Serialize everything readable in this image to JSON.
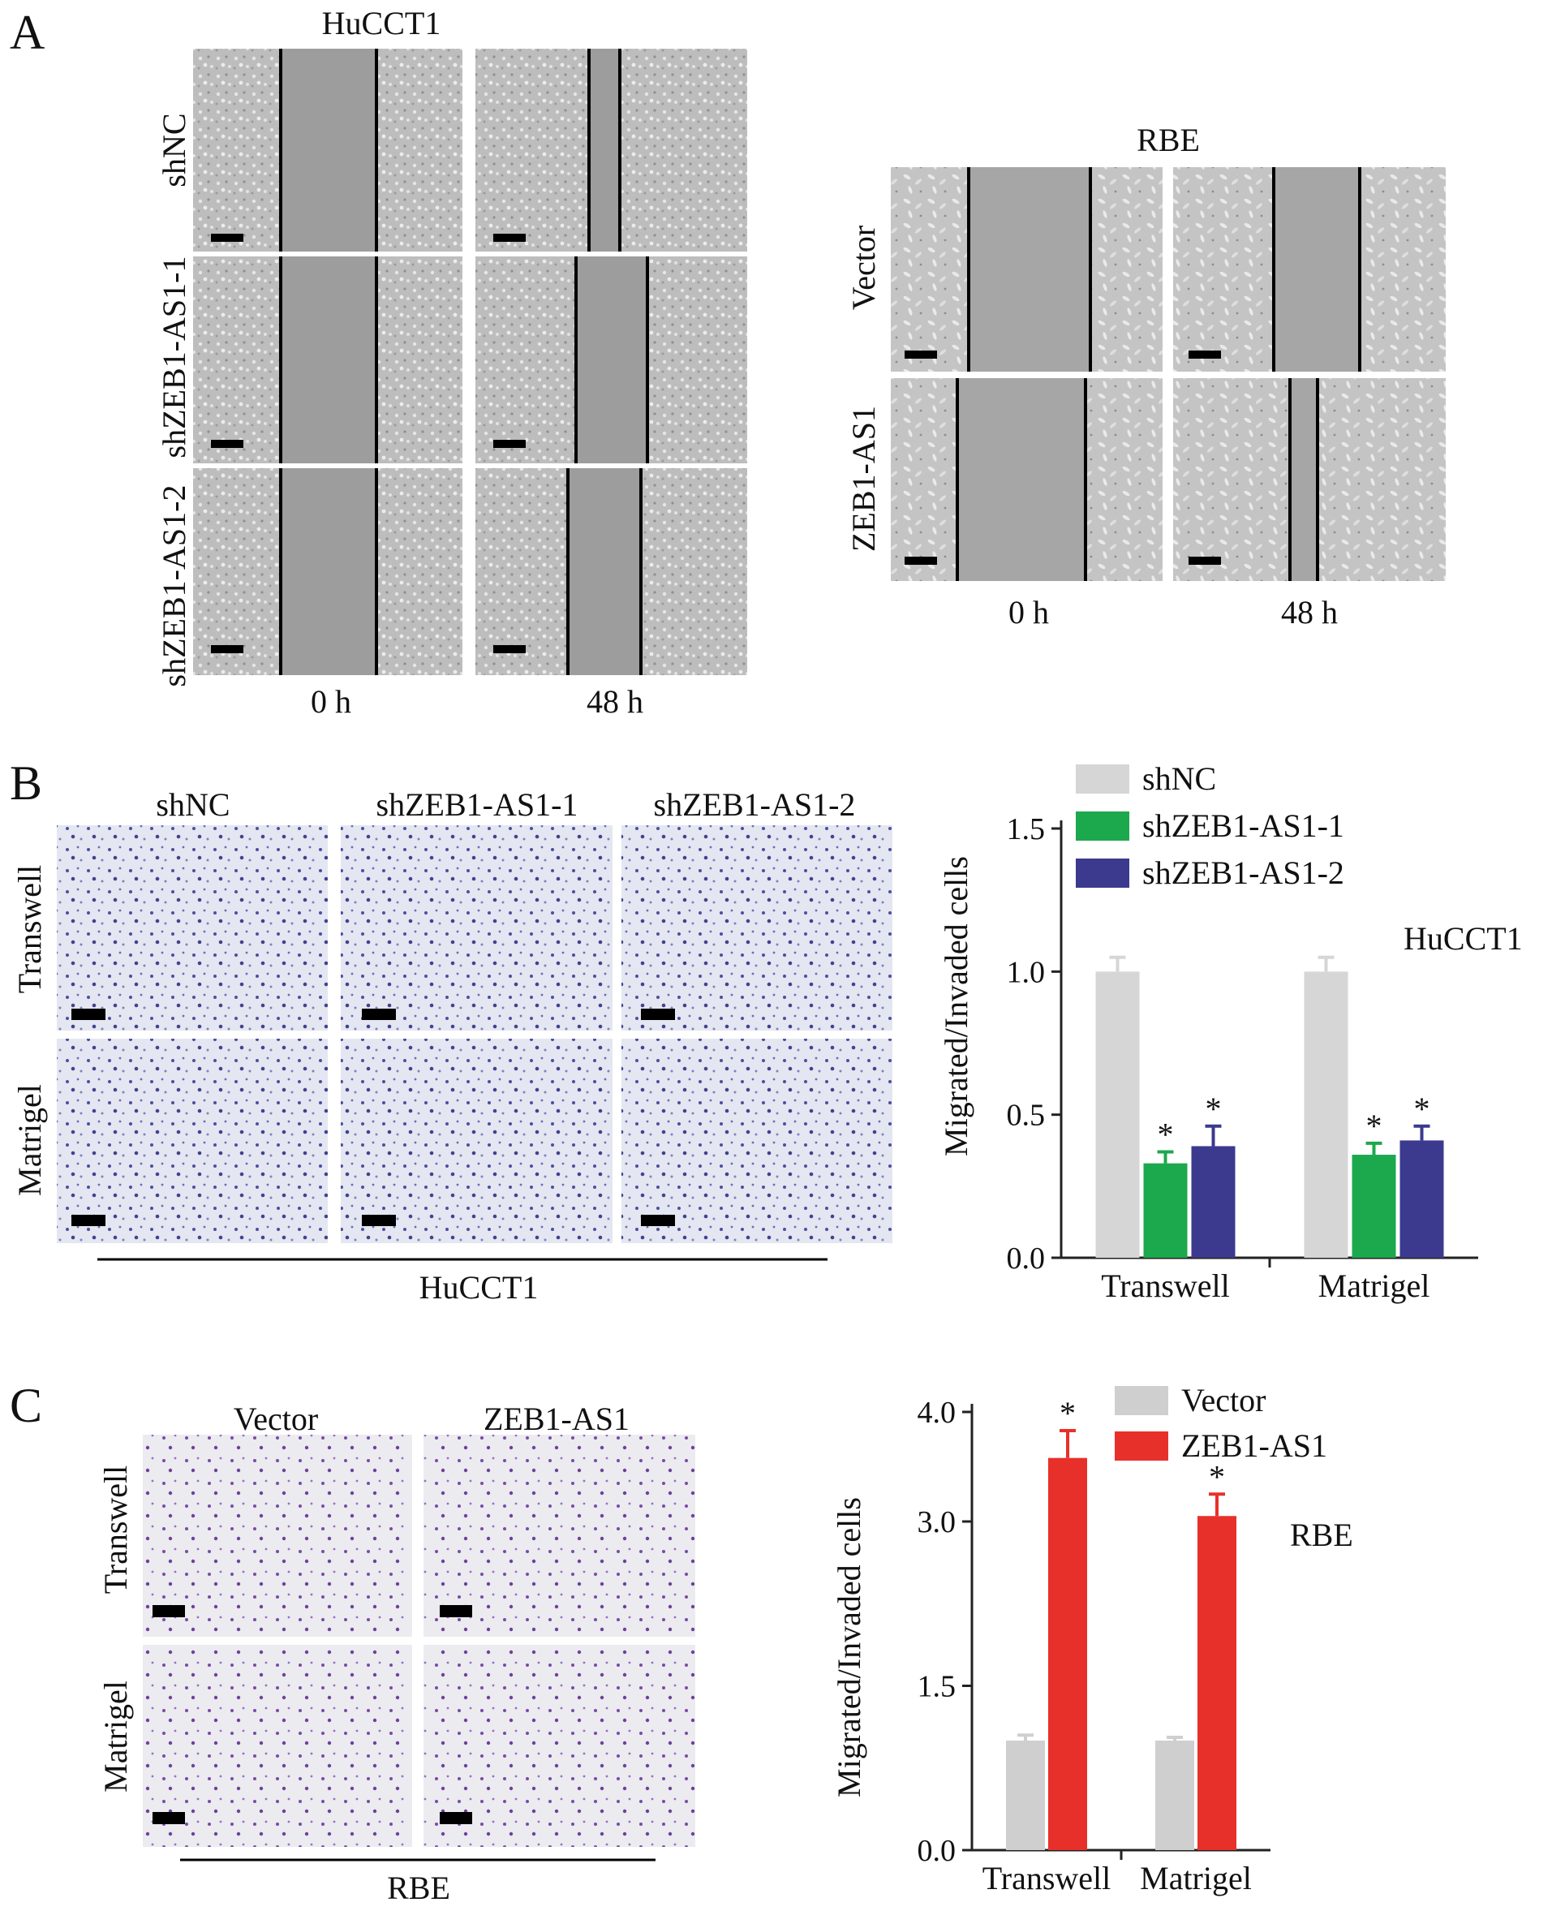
{
  "panel_a": {
    "letter": "A",
    "hucct1": {
      "title": "HuCCT1",
      "rows": [
        "shNC",
        "shZEB1-AS1-1",
        "shZEB1-AS1-2"
      ],
      "cols": [
        "0 h",
        "48 h"
      ]
    },
    "rbe": {
      "title": "RBE",
      "rows": [
        "Vector",
        "ZEB1-AS1"
      ],
      "cols": [
        "0 h",
        "48 h"
      ]
    }
  },
  "panel_b": {
    "letter": "B",
    "cols": [
      "shNC",
      "shZEB1-AS1-1",
      "shZEB1-AS1-2"
    ],
    "rows": [
      "Transwell",
      "Matrigel"
    ],
    "group_label": "HuCCT1"
  },
  "panel_c": {
    "letter": "C",
    "cols": [
      "Vector",
      "ZEB1-AS1"
    ],
    "rows": [
      "Transwell",
      "Matrigel"
    ],
    "group_label": "RBE"
  },
  "chart_data": [
    {
      "type": "bar",
      "title": "",
      "annotation": "HuCCT1",
      "ylabel": "Migrated/Invaded cells",
      "xlabel": "",
      "categories": [
        "Transwell",
        "Matrigel"
      ],
      "ylim": [
        0,
        1.5
      ],
      "yticks": [
        "0.0",
        "0.5",
        "1.0",
        "1.5"
      ],
      "legend_position": "top",
      "series": [
        {
          "name": "shNC",
          "color": "#d6d6d6",
          "values": [
            1.0,
            1.0
          ],
          "errors": [
            0.05,
            0.05
          ],
          "sig": [
            "",
            ""
          ]
        },
        {
          "name": "shZEB1-AS1-1",
          "color": "#1ca84c",
          "values": [
            0.33,
            0.36
          ],
          "errors": [
            0.04,
            0.04
          ],
          "sig": [
            "*",
            "*"
          ]
        },
        {
          "name": "shZEB1-AS1-2",
          "color": "#3b3a8f",
          "values": [
            0.39,
            0.41
          ],
          "errors": [
            0.07,
            0.05
          ],
          "sig": [
            "*",
            "*"
          ]
        }
      ]
    },
    {
      "type": "bar",
      "title": "",
      "annotation": "RBE",
      "ylabel": "Migrated/Invaded cells",
      "xlabel": "",
      "categories": [
        "Transwell",
        "Matrigel"
      ],
      "ylim": [
        0,
        4.0
      ],
      "yticks": [
        "0.0",
        "1.5",
        "3.0",
        "4.0"
      ],
      "ytick_values": [
        0,
        1.5,
        3.0,
        4.0
      ],
      "legend_position": "top",
      "series": [
        {
          "name": "Vector",
          "color": "#cfcfcf",
          "values": [
            1.0,
            1.0
          ],
          "errors": [
            0.05,
            0.03
          ],
          "sig": [
            "",
            ""
          ]
        },
        {
          "name": "ZEB1-AS1",
          "color": "#e8302a",
          "values": [
            3.58,
            3.05
          ],
          "errors": [
            0.25,
            0.2
          ],
          "sig": [
            "*",
            "*"
          ]
        }
      ]
    }
  ]
}
